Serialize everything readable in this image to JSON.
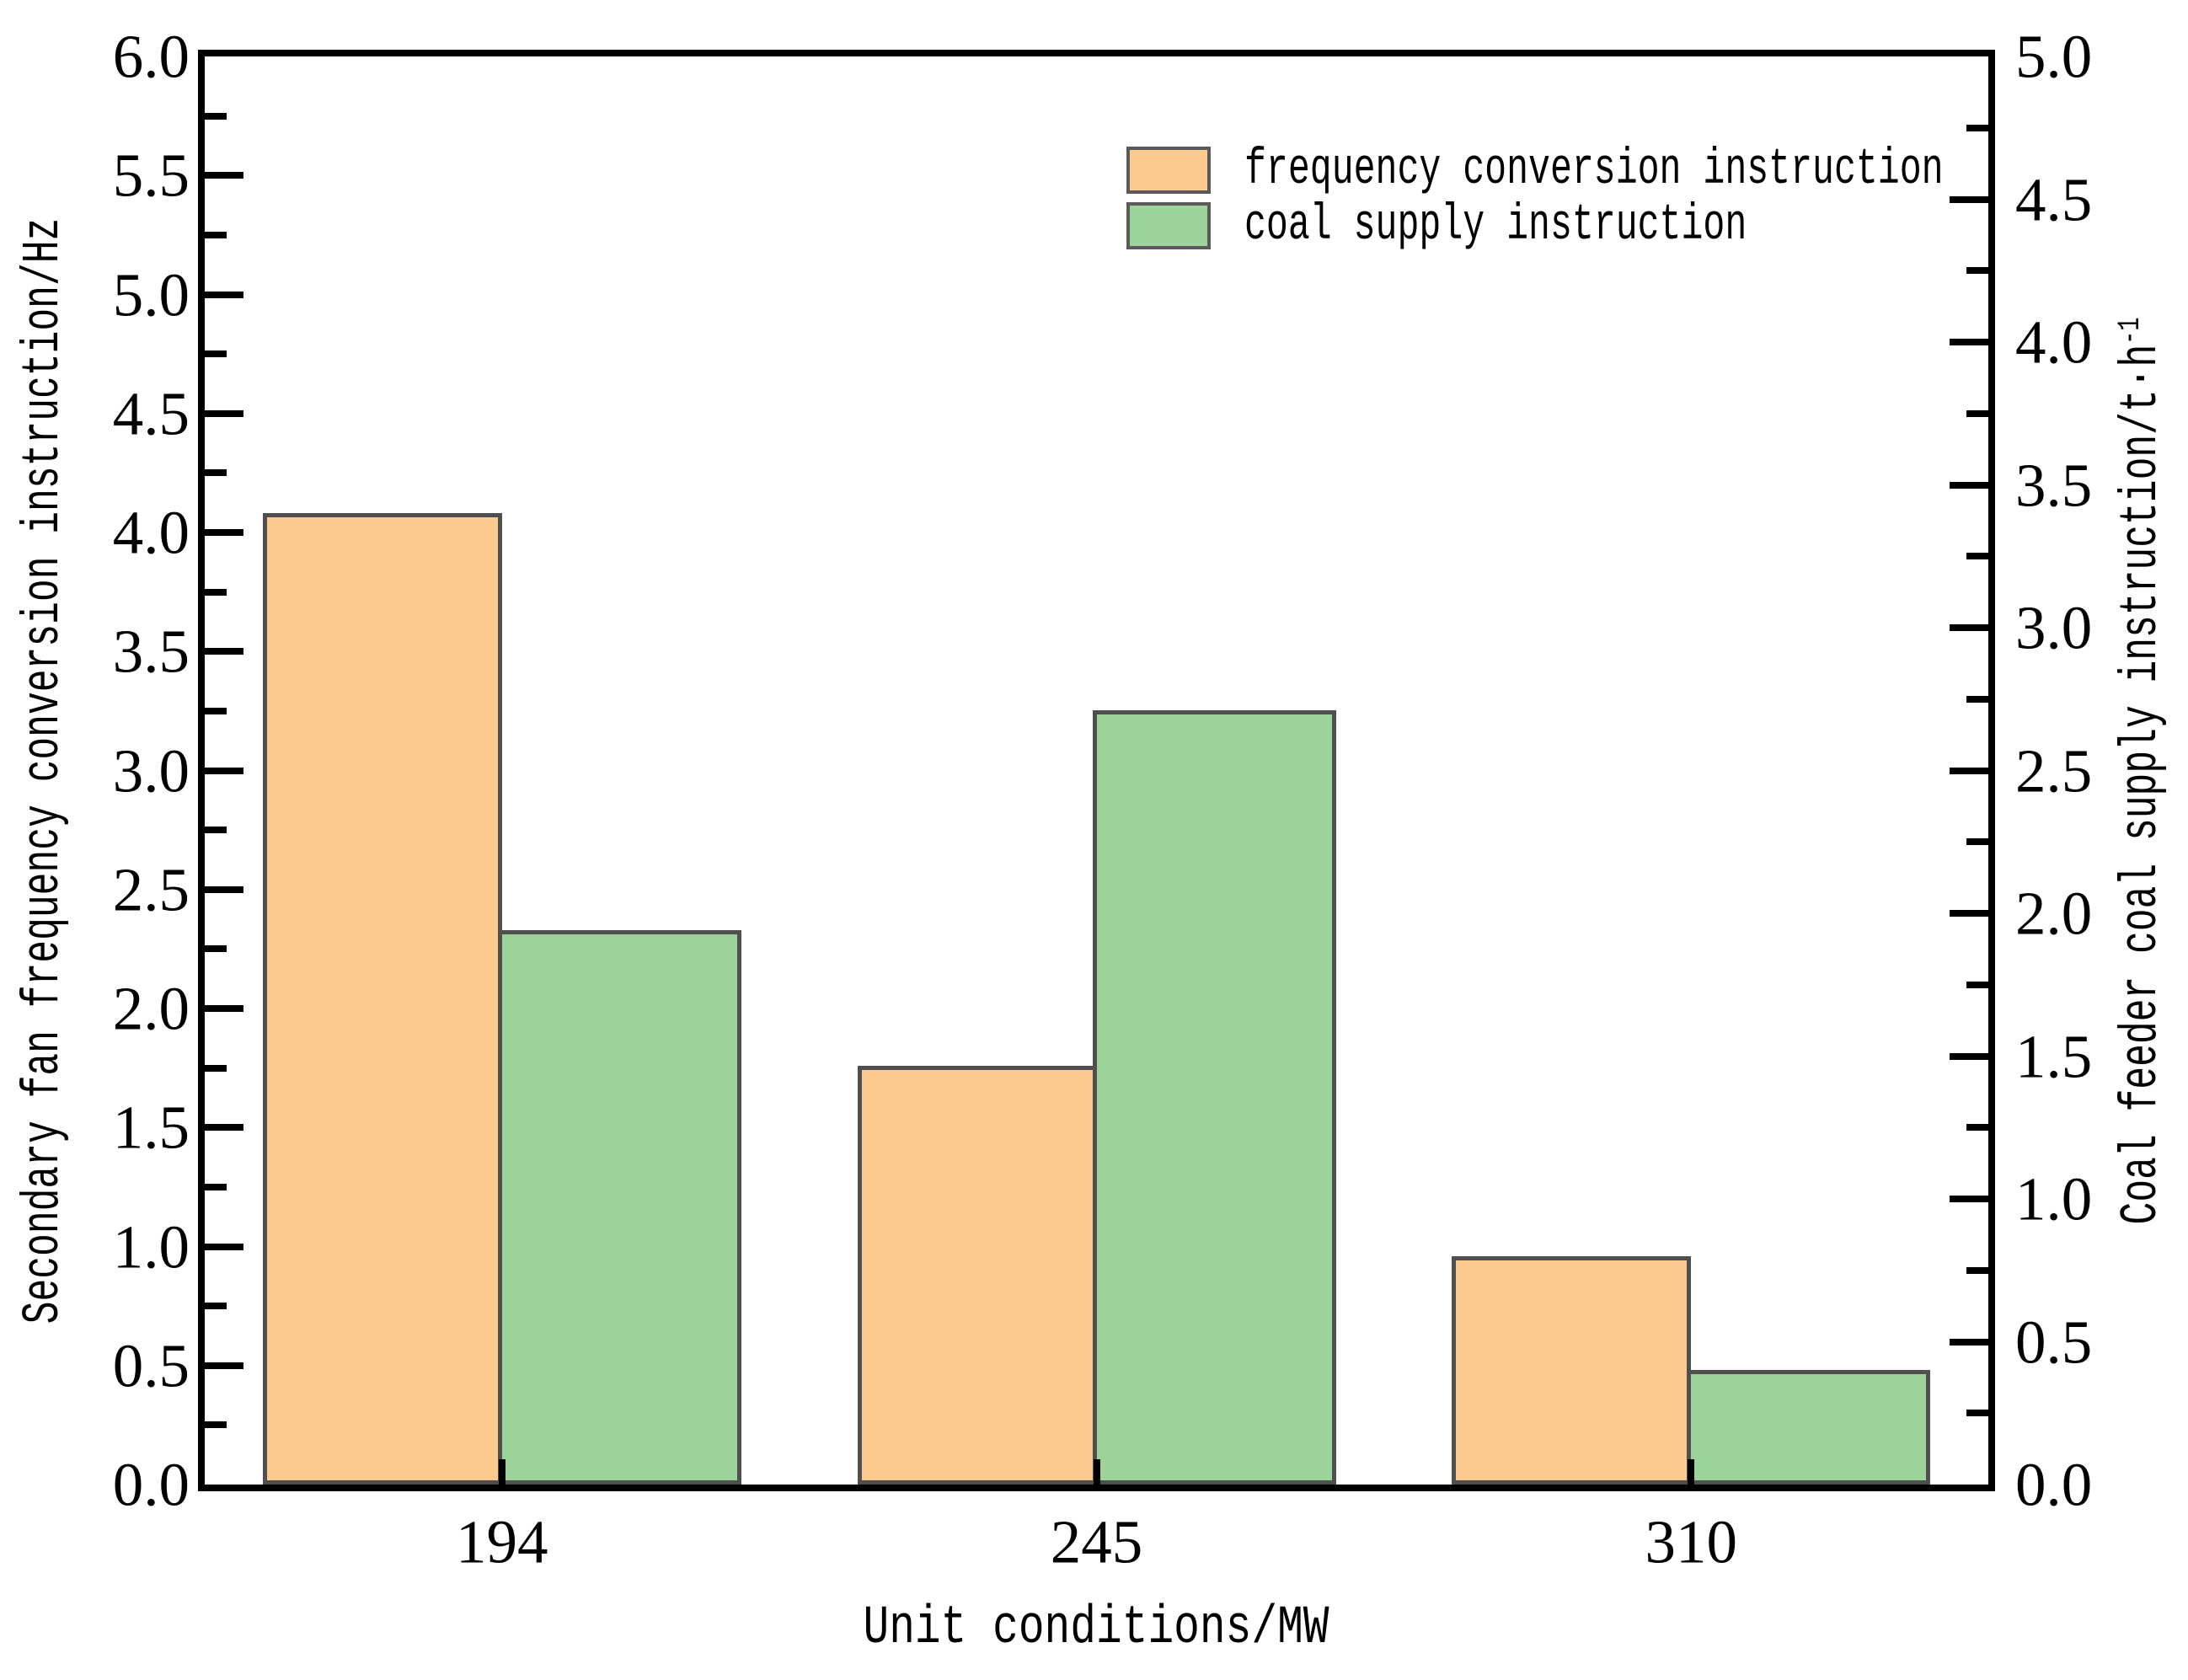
{
  "chart_data": {
    "type": "bar",
    "title": "",
    "categories": [
      "194",
      "245",
      "310"
    ],
    "series": [
      {
        "name": "frequency conversion instruction",
        "axis": "left",
        "unit": "Hz",
        "color": "#fcca8e",
        "edge_color": "#4f4f4f",
        "values": [
          4.08,
          1.76,
          0.96
        ]
      },
      {
        "name": "coal supply instruction",
        "axis": "right",
        "unit": "t·h⁻¹",
        "color": "#9cd39a",
        "edge_color": "#4f4f4f",
        "values": [
          1.94,
          2.71,
          0.4
        ]
      }
    ],
    "xlabel": "Unit conditions/MW",
    "ylabel_left": "Secondary fan frequency conversion instruction/Hz",
    "ylabel_right": "Coal feeder coal supply instruction/t·h⁻¹",
    "ylim_left": [
      0,
      6
    ],
    "ylim_right": [
      0,
      5
    ],
    "ytick_major_step": 0.5,
    "ytick_minor_step": 0.25,
    "grid": false,
    "legend_position": "upper-right-inside",
    "bar_width_fraction": 0.402
  },
  "axes": {
    "left": {
      "tick_labels": [
        "0.0",
        "0.5",
        "1.0",
        "1.5",
        "2.0",
        "2.5",
        "3.0",
        "3.5",
        "4.0",
        "4.5",
        "5.0",
        "5.5",
        "6.0"
      ]
    },
    "right": {
      "tick_labels": [
        "0.0",
        "0.5",
        "1.0",
        "1.5",
        "2.0",
        "2.5",
        "3.0",
        "3.5",
        "4.0",
        "4.5",
        "5.0"
      ]
    },
    "x": {
      "tick_labels": [
        "194",
        "245",
        "310"
      ]
    }
  },
  "labels": {
    "ylabel_left": "Secondary fan frequency conversion instruction/Hz",
    "ylabel_right_base": "Coal feeder coal supply instruction/t·h",
    "ylabel_right_sup": "-1",
    "xlabel": "Unit conditions/MW"
  },
  "legend": {
    "items": [
      {
        "label": "frequency conversion instruction",
        "color": "#fcca8e"
      },
      {
        "label": "coal supply instruction",
        "color": "#9cd39a"
      }
    ]
  }
}
